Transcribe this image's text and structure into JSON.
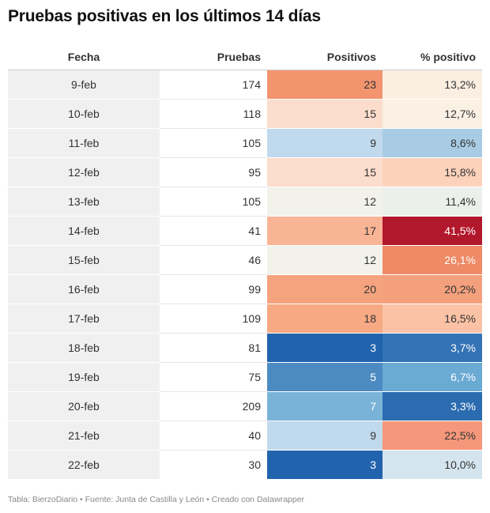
{
  "title": "Pruebas positivas en los últimos 14 días",
  "columns": [
    "Fecha",
    "Pruebas",
    "Positivos",
    "% positivo"
  ],
  "rows": [
    {
      "fecha": "9-feb",
      "pruebas": "174",
      "positivos": "23",
      "pct": "13,2%"
    },
    {
      "fecha": "10-feb",
      "pruebas": "118",
      "positivos": "15",
      "pct": "12,7%"
    },
    {
      "fecha": "11-feb",
      "pruebas": "105",
      "positivos": "9",
      "pct": "8,6%"
    },
    {
      "fecha": "12-feb",
      "pruebas": "95",
      "positivos": "15",
      "pct": "15,8%"
    },
    {
      "fecha": "13-feb",
      "pruebas": "105",
      "positivos": "12",
      "pct": "11,4%"
    },
    {
      "fecha": "14-feb",
      "pruebas": "41",
      "positivos": "17",
      "pct": "41,5%"
    },
    {
      "fecha": "15-feb",
      "pruebas": "46",
      "positivos": "12",
      "pct": "26,1%"
    },
    {
      "fecha": "16-feb",
      "pruebas": "99",
      "positivos": "20",
      "pct": "20,2%"
    },
    {
      "fecha": "17-feb",
      "pruebas": "109",
      "positivos": "18",
      "pct": "16,5%"
    },
    {
      "fecha": "18-feb",
      "pruebas": "81",
      "positivos": "3",
      "pct": "3,7%"
    },
    {
      "fecha": "19-feb",
      "pruebas": "75",
      "positivos": "5",
      "pct": "6,7%"
    },
    {
      "fecha": "20-feb",
      "pruebas": "209",
      "positivos": "7",
      "pct": "3,3%"
    },
    {
      "fecha": "21-feb",
      "pruebas": "40",
      "positivos": "9",
      "pct": "22,5%"
    },
    {
      "fecha": "22-feb",
      "pruebas": "30",
      "positivos": "3",
      "pct": "10,0%"
    }
  ],
  "heat_colors": {
    "positivos": [
      "#f3946f",
      "#fcdccc",
      "#c1d9ec",
      "#fcdccc",
      "#f2f2ea",
      "#f8b596",
      "#f2f2ea",
      "#f5a37f",
      "#f6a983",
      "#2263ad",
      "#4c8bc2",
      "#7ab3d8",
      "#c1d9ec",
      "#2263ad"
    ],
    "pct": [
      "#fbefe2",
      "#faf0e4",
      "#a8cce4",
      "#fdd2bb",
      "#ebf0ea",
      "#b2182b",
      "#ee8a66",
      "#f4a07d",
      "#fbc2a6",
      "#3474b6",
      "#6aaad3",
      "#2b6cb0",
      "#f5977a",
      "#d5e5ef"
    ]
  },
  "text_colors": {
    "positivos": [
      "#333333",
      "#333333",
      "#333333",
      "#333333",
      "#333333",
      "#333333",
      "#333333",
      "#333333",
      "#333333",
      "#ffffff",
      "#ffffff",
      "#ffffff",
      "#333333",
      "#ffffff"
    ],
    "pct": [
      "#333333",
      "#333333",
      "#333333",
      "#333333",
      "#333333",
      "#ffffff",
      "#ffffff",
      "#333333",
      "#333333",
      "#ffffff",
      "#ffffff",
      "#ffffff",
      "#333333",
      "#333333"
    ]
  },
  "footer": "Tabla: BierzoDiario • Fuente: Junta de Castilla y León • Creado con Datawrapper"
}
